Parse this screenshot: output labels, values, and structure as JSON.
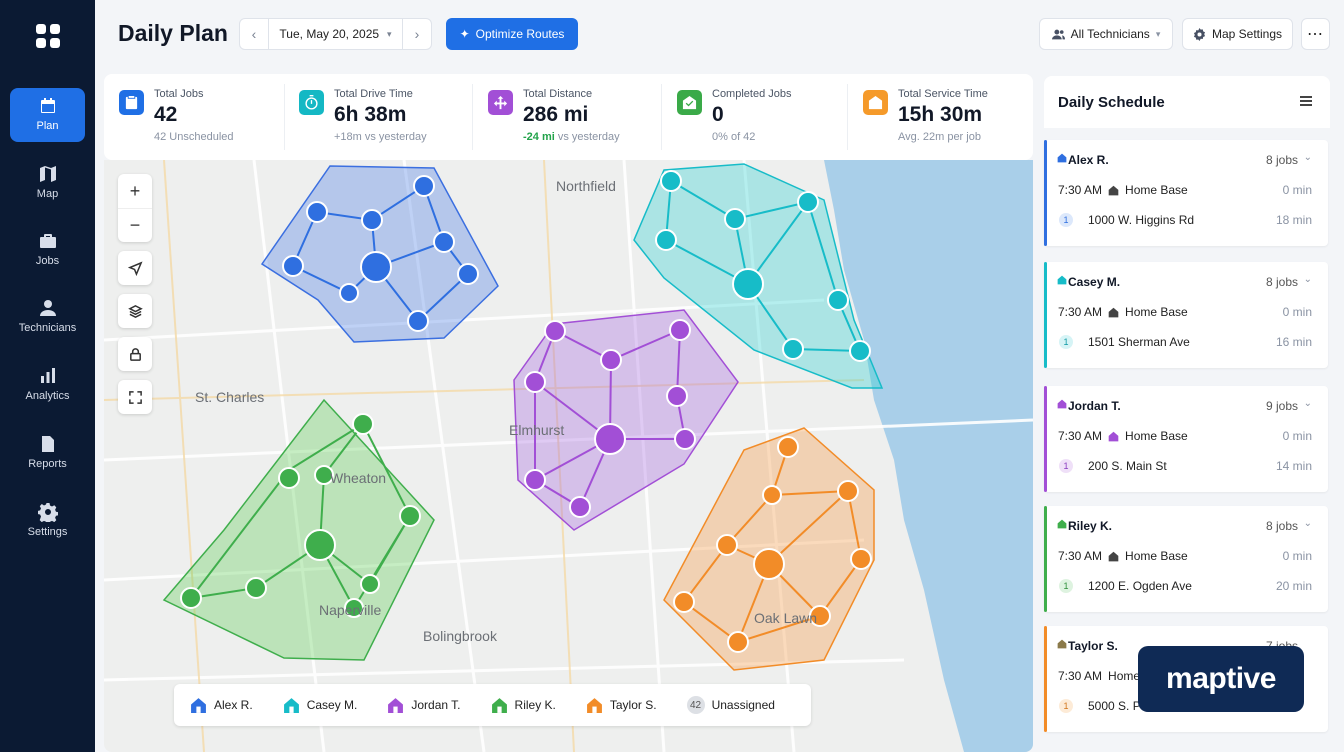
{
  "app": {
    "title": "Daily Plan"
  },
  "sidebar": {
    "items": [
      {
        "label": "Plan",
        "icon": "calendar-icon",
        "active": true
      },
      {
        "label": "Map",
        "icon": "map-icon"
      },
      {
        "label": "Jobs",
        "icon": "briefcase-icon"
      },
      {
        "label": "Technicians",
        "icon": "person-icon"
      },
      {
        "label": "Analytics",
        "icon": "bar-chart-icon"
      },
      {
        "label": "Reports",
        "icon": "document-icon"
      },
      {
        "label": "Settings",
        "icon": "gear-icon"
      }
    ]
  },
  "header": {
    "date": "Tue, May 20, 2025",
    "optimize_label": "Optimize Routes",
    "technicians_filter": "All Technicians",
    "map_settings_label": "Map Settings"
  },
  "stats": [
    {
      "label": "Total Jobs",
      "value": "42",
      "sub": "42 Unscheduled",
      "color": "#1f6fe5"
    },
    {
      "label": "Total Drive Time",
      "value": "6h 38m",
      "sub": "+18m vs yesterday",
      "color": "#14b8c4"
    },
    {
      "label": "Total Distance",
      "value": "286 mi",
      "sub_delta": "-24 mi",
      "sub_rest": "vs yesterday",
      "color": "#a24fd6"
    },
    {
      "label": "Completed Jobs",
      "value": "0",
      "sub": "0% of 42",
      "color": "#3aaa48"
    },
    {
      "label": "Total Service Time",
      "value": "15h 30m",
      "sub": "Avg. 22m per job",
      "color": "#f59a2a"
    }
  ],
  "map": {
    "places": [
      "Northfield",
      "St. Charles",
      "Wheaton",
      "Bolingbrook",
      "Oak Lawn",
      "Elmhurst",
      "Naperville"
    ]
  },
  "legend": {
    "items": [
      {
        "label": "Alex R.",
        "color": "#2f6fe0"
      },
      {
        "label": "Casey M.",
        "color": "#17bcc8"
      },
      {
        "label": "Jordan T.",
        "color": "#a24fd6"
      },
      {
        "label": "Riley K.",
        "color": "#3fae4c"
      },
      {
        "label": "Taylor S.",
        "color": "#f28c28"
      }
    ],
    "unassigned_count": "42",
    "unassigned_label": "Unassigned"
  },
  "schedule": {
    "title": "Daily Schedule",
    "cards": [
      {
        "name": "Alex R.",
        "jobs": "8 jobs",
        "start_time": "7:30 AM",
        "start_place": "Home Base",
        "start_min": "0 min",
        "stop_num": "1",
        "stop_addr": "1000 W. Higgins Rd",
        "stop_min": "18 min",
        "color": "#2f6fe0",
        "num_bg": "#dce8fb",
        "num_fg": "#2f6fe0"
      },
      {
        "name": "Casey M.",
        "jobs": "8 jobs",
        "start_time": "7:30 AM",
        "start_place": "Home Base",
        "start_min": "0 min",
        "stop_num": "1",
        "stop_addr": "1501 Sherman Ave",
        "stop_min": "16 min",
        "color": "#17bcc8",
        "num_bg": "#d6f4f6",
        "num_fg": "#0f9aa5"
      },
      {
        "name": "Jordan T.",
        "jobs": "9 jobs",
        "start_time": "7:30 AM",
        "start_place": "Home Base",
        "start_min": "0 min",
        "stop_num": "1",
        "stop_addr": "200 S. Main St",
        "stop_min": "14 min",
        "color": "#a24fd6",
        "num_bg": "#efe0f8",
        "num_fg": "#8a3bbf"
      },
      {
        "name": "Riley K.",
        "jobs": "8 jobs",
        "start_time": "7:30 AM",
        "start_place": "Home Base",
        "start_min": "0 min",
        "stop_num": "1",
        "stop_addr": "1200 E. Ogden Ave",
        "stop_min": "20 min",
        "color": "#3fae4c",
        "num_bg": "#def3e0",
        "num_fg": "#2e8f3a"
      },
      {
        "name": "Taylor S.",
        "jobs": "7 jobs",
        "start_time": "7:30 AM",
        "start_place": "Home Base",
        "start_min": "",
        "stop_num": "1",
        "stop_addr": "5000 S. P",
        "stop_min": "",
        "color": "#f28c28",
        "num_bg": "#fdebd7",
        "num_fg": "#d2761c"
      }
    ]
  },
  "brand": {
    "logo_text": "maptive"
  }
}
